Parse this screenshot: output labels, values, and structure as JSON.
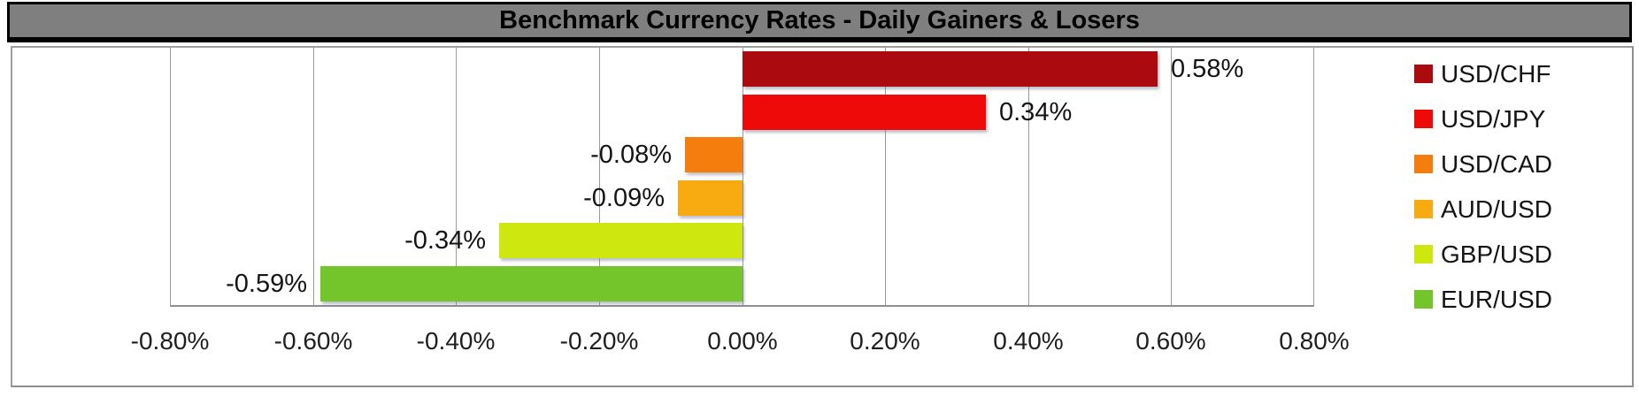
{
  "title": "Benchmark Currency Rates - Daily Gainers & Losers",
  "colors": {
    "title_bg": "#7F7F7F",
    "title_border": "#000000",
    "chart_border": "#9E9E9E",
    "gridline": "#9A9A9A",
    "axis_text": "#1F1F1F",
    "value_text": "#141414"
  },
  "chart_data": {
    "type": "bar",
    "orientation": "horizontal",
    "title": "Benchmark Currency Rates - Daily Gainers & Losers",
    "xlim": [
      -0.8,
      0.8
    ],
    "x_tick_labels": [
      "-0.80%",
      "-0.60%",
      "-0.40%",
      "-0.20%",
      "0.00%",
      "0.20%",
      "0.40%",
      "0.60%",
      "0.80%"
    ],
    "grid": true,
    "legend_position": "right",
    "series": [
      {
        "name": "USD/CHF",
        "value": 0.58,
        "label": "0.58%",
        "color": "#AB0B0E"
      },
      {
        "name": "USD/JPY",
        "value": 0.34,
        "label": "0.34%",
        "color": "#EF0A0A"
      },
      {
        "name": "USD/CAD",
        "value": -0.08,
        "label": "-0.08%",
        "color": "#F47D0E"
      },
      {
        "name": "AUD/USD",
        "value": -0.09,
        "label": "-0.09%",
        "color": "#F8AB10"
      },
      {
        "name": "GBP/USD",
        "value": -0.34,
        "label": "-0.34%",
        "color": "#CDE70F"
      },
      {
        "name": "EUR/USD",
        "value": -0.59,
        "label": "-0.59%",
        "color": "#74C52C"
      }
    ]
  }
}
